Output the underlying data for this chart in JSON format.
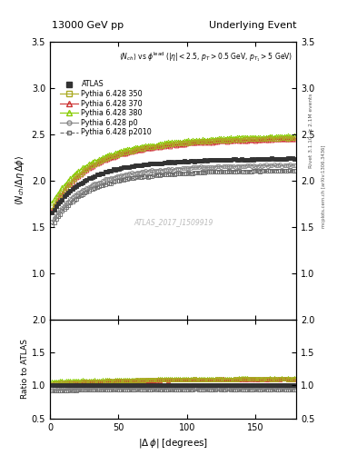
{
  "title_left": "13000 GeV pp",
  "title_right": "Underlying Event",
  "annotation": "ATLAS_2017_I1509919",
  "inner_title": "<N_{ch}> vs #phi^{lead} (|#eta| < 2.5, p_{T} > 0.5 GeV, p_{T_{1}} > 5 GeV)",
  "right_label1": "Rivet 3.1.10, ≥ 2.1M events",
  "right_label2": "mcplots.cern.ch [arXiv:1306.3436]",
  "xlim": [
    0,
    180
  ],
  "ylim_main": [
    0.5,
    3.5
  ],
  "ylim_ratio": [
    0.5,
    2.0
  ],
  "series": [
    {
      "label": "ATLAS",
      "color": "#333333",
      "marker": "s",
      "ms": 3.5,
      "ls": "none",
      "lw": 0,
      "filled": true,
      "dashes": []
    },
    {
      "label": "Pythia 6.428 350",
      "color": "#aaaa22",
      "marker": "s",
      "ms": 3.5,
      "ls": "-",
      "lw": 0.8,
      "filled": false,
      "dashes": []
    },
    {
      "label": "Pythia 6.428 370",
      "color": "#cc3333",
      "marker": "^",
      "ms": 3.5,
      "ls": "-",
      "lw": 0.8,
      "filled": false,
      "dashes": []
    },
    {
      "label": "Pythia 6.428 380",
      "color": "#88cc00",
      "marker": "^",
      "ms": 3.5,
      "ls": "-",
      "lw": 0.8,
      "filled": false,
      "dashes": []
    },
    {
      "label": "Pythia 6.428 p0",
      "color": "#888888",
      "marker": "o",
      "ms": 3.0,
      "ls": "-",
      "lw": 0.8,
      "filled": false,
      "dashes": []
    },
    {
      "label": "Pythia 6.428 p2010",
      "color": "#666666",
      "marker": "s",
      "ms": 3.0,
      "ls": "--",
      "lw": 0.8,
      "filled": false,
      "dashes": [
        3,
        2
      ]
    }
  ]
}
